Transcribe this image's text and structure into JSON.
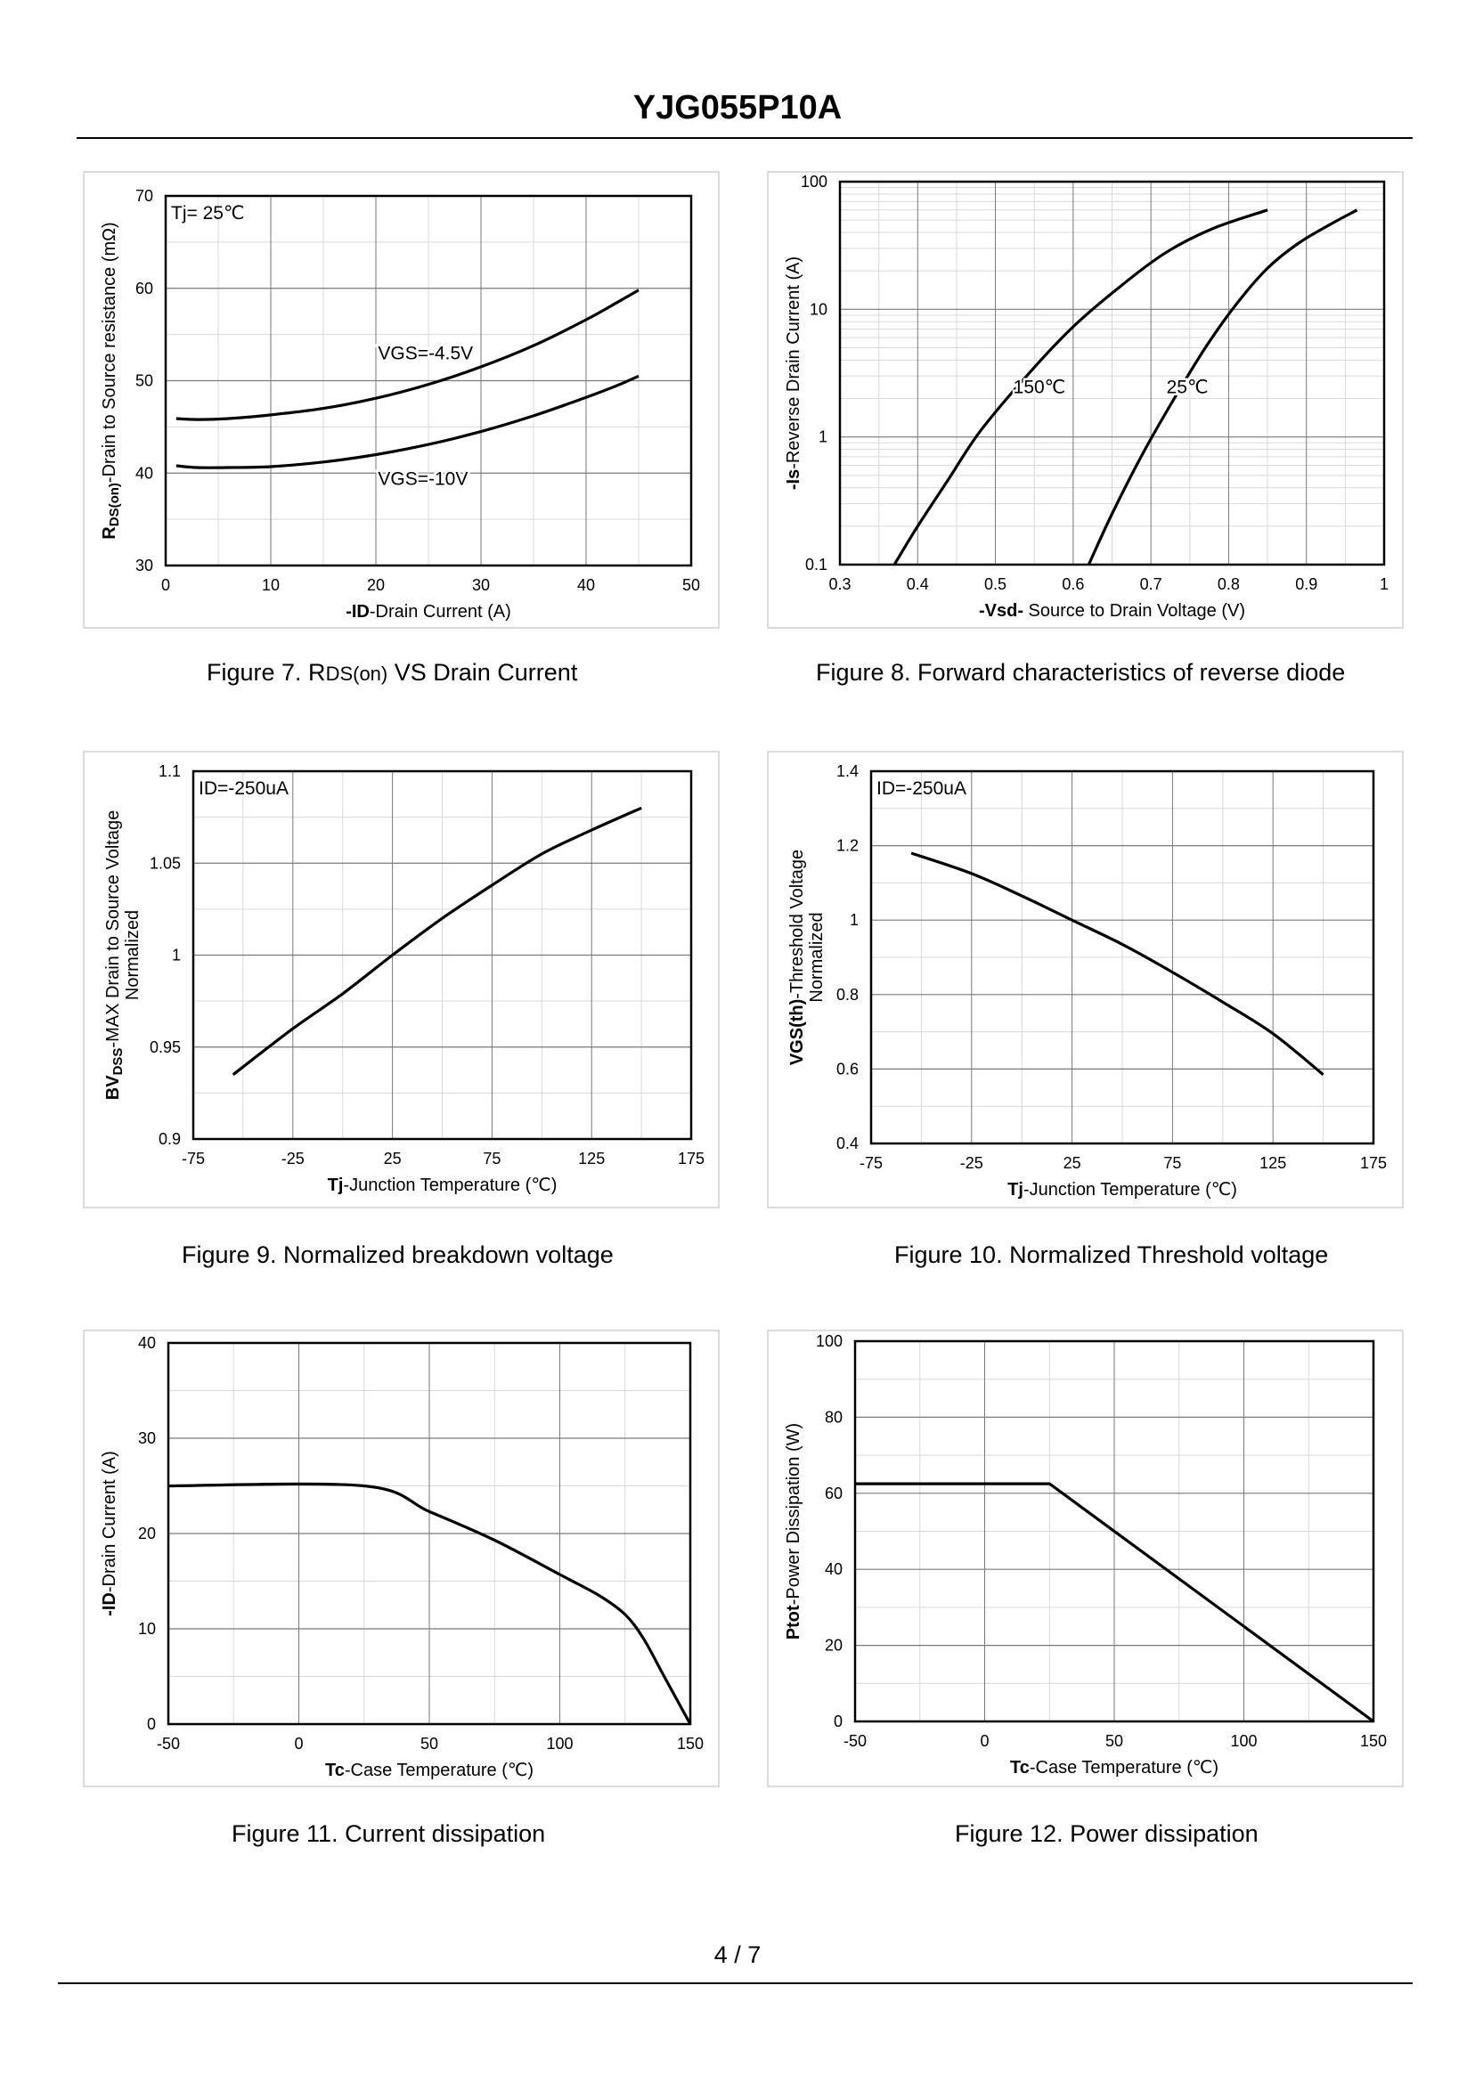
{
  "document": {
    "title": "YJG055P10A",
    "page_number": "4 / 7"
  },
  "captions": {
    "fig7": {
      "prefix": "Figure 7.  R",
      "sub": "DS(on)",
      "suffix": " VS Drain Current"
    },
    "fig8": "Figure 8.  Forward characteristics of reverse diode",
    "fig9": "Figure 9.  Normalized breakdown voltage",
    "fig10": "Figure 10.  Normalized Threshold voltage",
    "fig11": "Figure 11.  Current dissipation",
    "fig12": "Figure 12.  Power dissipation"
  },
  "chart_data": [
    {
      "id": "fig7",
      "type": "line",
      "annotation": "Tj= 25℃",
      "xlabel": {
        "bold": "-ID",
        "rest": "-Drain Current (A)"
      },
      "ylabel": {
        "bold": "R",
        "bold_sub": "DS(on)",
        "rest": "-Drain to Source resistance (mΩ)"
      },
      "xlim": [
        0,
        50
      ],
      "ylim": [
        30,
        70
      ],
      "xticks": [
        0,
        10,
        20,
        30,
        40,
        50
      ],
      "yticks": [
        30,
        40,
        50,
        60,
        70
      ],
      "x_minor": 5,
      "y_minor": 5,
      "series": [
        {
          "name": "VGS=-4.5V",
          "x": [
            1,
            3,
            6,
            10,
            15,
            20,
            25,
            30,
            35,
            40,
            43,
            45
          ],
          "y": [
            45.9,
            45.8,
            45.9,
            46.3,
            47.0,
            48.1,
            49.6,
            51.5,
            53.8,
            56.6,
            58.5,
            59.8
          ]
        },
        {
          "name": "VGS=-10V",
          "x": [
            1,
            3,
            6,
            10,
            15,
            20,
            25,
            30,
            35,
            40,
            43,
            45
          ],
          "y": [
            40.8,
            40.6,
            40.6,
            40.7,
            41.2,
            42.0,
            43.1,
            44.5,
            46.2,
            48.2,
            49.5,
            50.5
          ]
        }
      ],
      "series_labels": [
        {
          "text": "VGS=-4.5V",
          "x": 20.2,
          "y": 52.3
        },
        {
          "text": "VGS=-10V",
          "x": 20.2,
          "y": 38.7
        }
      ]
    },
    {
      "id": "fig8",
      "type": "line",
      "xscale": "linear",
      "yscale": "log",
      "xlabel": {
        "bold": "-Vsd-",
        "rest": " Source to Drain Voltage (V)"
      },
      "ylabel": {
        "bold": "-Is",
        "rest": "-Reverse  Drain Current (A)"
      },
      "xlim": [
        0.3,
        1.0
      ],
      "ylim": [
        0.1,
        100
      ],
      "xticks": [
        0.3,
        0.4,
        0.5,
        0.6,
        0.7,
        0.8,
        0.9,
        1.0
      ],
      "xtick_labels": [
        "0.3",
        "0.4",
        "0.5",
        "0.6",
        "0.7",
        "0.8",
        "0.9",
        "1"
      ],
      "yticks": [
        0.1,
        1,
        10,
        100
      ],
      "ytick_labels": [
        "0.1",
        "1",
        "10",
        "100"
      ],
      "x_minor": 0.05,
      "series": [
        {
          "name": "150℃",
          "x": [
            0.37,
            0.4,
            0.44,
            0.48,
            0.54,
            0.6,
            0.66,
            0.72,
            0.78,
            0.85
          ],
          "y": [
            0.1,
            0.2,
            0.47,
            1.1,
            3.0,
            7.3,
            15,
            28,
            43,
            60
          ]
        },
        {
          "name": "25℃",
          "x": [
            0.62,
            0.65,
            0.69,
            0.73,
            0.77,
            0.81,
            0.85,
            0.89,
            0.93,
            0.965
          ],
          "y": [
            0.1,
            0.25,
            0.75,
            2.0,
            5.0,
            11,
            21,
            33,
            46,
            60
          ]
        }
      ],
      "series_labels": [
        {
          "text": "150℃",
          "x": 0.523,
          "y": 2.2
        },
        {
          "text": "25℃",
          "x": 0.72,
          "y": 2.2
        }
      ]
    },
    {
      "id": "fig9",
      "type": "line",
      "annotation": "ID=-250uA",
      "xlabel": {
        "bold": "Tj",
        "rest": "-Junction  Temperature (℃)"
      },
      "ylabel": {
        "bold": "BV",
        "bold_sub": "DSS",
        "rest": "-MAX Drain to Source Voltage",
        "line2": "Normalized"
      },
      "xlim": [
        -75,
        175
      ],
      "ylim": [
        0.9,
        1.1
      ],
      "xticks": [
        -75,
        -25,
        25,
        75,
        125,
        175
      ],
      "yticks": [
        0.9,
        0.95,
        1,
        1.05,
        1.1
      ],
      "ytick_labels": [
        "0.9",
        "0.95",
        "1",
        "1.05",
        "1.1"
      ],
      "x_minor": 25,
      "y_minor": 0.025,
      "series": [
        {
          "name": "BVDSS",
          "x": [
            -55,
            -25,
            0,
            25,
            50,
            75,
            100,
            125,
            150
          ],
          "y": [
            0.935,
            0.96,
            0.979,
            1.0,
            1.02,
            1.038,
            1.055,
            1.068,
            1.08
          ]
        }
      ]
    },
    {
      "id": "fig10",
      "type": "line",
      "annotation": "ID=-250uA",
      "xlabel": {
        "bold": "Tj",
        "rest": "-Junction  Temperature (℃)"
      },
      "ylabel": {
        "bold": "VGS(th)",
        "rest": "-Threshold  Voltage",
        "line2": "Normalized"
      },
      "xlim": [
        -75,
        175
      ],
      "ylim": [
        0.4,
        1.4
      ],
      "xticks": [
        -75,
        -25,
        25,
        75,
        125,
        175
      ],
      "yticks": [
        0.4,
        0.6,
        0.8,
        1,
        1.2,
        1.4
      ],
      "ytick_labels": [
        "0.4",
        "0.6",
        "0.8",
        "1",
        "1.2",
        "1.4"
      ],
      "x_minor": 25,
      "y_minor": 0.1,
      "series": [
        {
          "name": "VGS(th)",
          "x": [
            -55,
            -25,
            0,
            25,
            50,
            75,
            100,
            125,
            150
          ],
          "y": [
            1.18,
            1.125,
            1.065,
            1.0,
            0.935,
            0.86,
            0.78,
            0.695,
            0.585
          ]
        }
      ]
    },
    {
      "id": "fig11",
      "type": "line",
      "xlabel": {
        "bold": "Tc",
        "rest": "-Case Temperature (℃)"
      },
      "ylabel": {
        "bold": "-ID",
        "rest": "-Drain Current (A)"
      },
      "xlim": [
        -50,
        150
      ],
      "ylim": [
        0,
        40
      ],
      "xticks": [
        -50,
        0,
        50,
        100,
        150
      ],
      "yticks": [
        0,
        10,
        20,
        30,
        40
      ],
      "x_minor": 25,
      "y_minor": 5,
      "series": [
        {
          "name": "ID",
          "x": [
            -50,
            25,
            50,
            75,
            100,
            115,
            125,
            132,
            140,
            150
          ],
          "y": [
            25,
            25,
            22.3,
            19.3,
            15.7,
            13.5,
            11.5,
            9.0,
            5.0,
            0
          ]
        }
      ]
    },
    {
      "id": "fig12",
      "type": "line",
      "xlabel": {
        "bold": "Tc",
        "rest": "-Case Temperature (℃)"
      },
      "ylabel": {
        "bold": "Ptot",
        "rest": "-Power Dissipation (W)"
      },
      "xlim": [
        -50,
        150
      ],
      "ylim": [
        0,
        100
      ],
      "xticks": [
        -50,
        0,
        50,
        100,
        150
      ],
      "yticks": [
        0,
        20,
        40,
        60,
        80,
        100
      ],
      "x_minor": 25,
      "y_minor": 10,
      "series": [
        {
          "name": "Ptot",
          "x": [
            -50,
            25,
            150
          ],
          "y": [
            62.5,
            62.5,
            0
          ]
        }
      ]
    }
  ]
}
